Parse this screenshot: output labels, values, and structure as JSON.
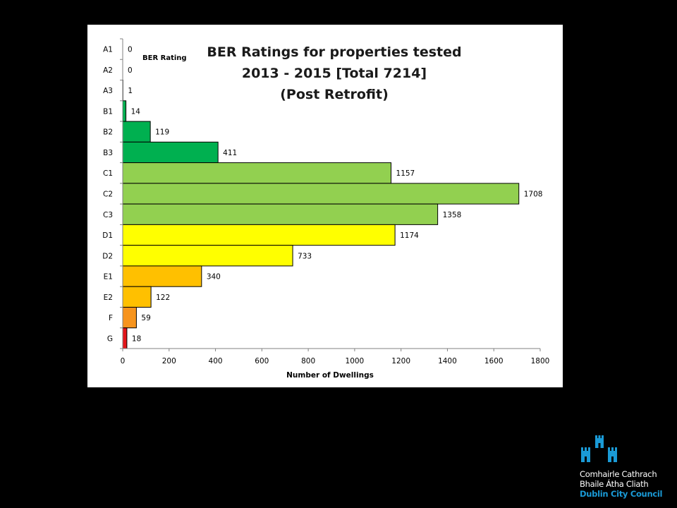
{
  "chart_data": {
    "type": "bar",
    "orientation": "horizontal",
    "title_lines": [
      "BER Ratings for properties tested",
      "2013 - 2015 [Total 7214]",
      "(Post Retrofit)"
    ],
    "xlabel": "Number of Dwellings",
    "ylabel": "BER Rating",
    "xlim": [
      0,
      1800
    ],
    "xticks": [
      "0",
      "200",
      "400",
      "600",
      "800",
      "1000",
      "1200",
      "1400",
      "1600",
      "1800"
    ],
    "grid": false,
    "legend": "none",
    "categories": [
      "A1",
      "A2",
      "A3",
      "B1",
      "B2",
      "B3",
      "C1",
      "C2",
      "C3",
      "D1",
      "D2",
      "E1",
      "E2",
      "F",
      "G"
    ],
    "values": [
      0,
      0,
      1,
      14,
      119,
      411,
      1157,
      1708,
      1358,
      1174,
      733,
      340,
      122,
      59,
      18
    ],
    "colors": [
      "#00a651",
      "#00a651",
      "#00a651",
      "#00b050",
      "#00b050",
      "#00b050",
      "#92d050",
      "#92d050",
      "#92d050",
      "#ffff00",
      "#ffff00",
      "#ffc000",
      "#ffc000",
      "#f7941d",
      "#e3151a"
    ]
  },
  "logo": {
    "line1": "Comhairle Cathrach",
    "line2": "Bhaile Átha Cliath",
    "line3": "Dublin City Council",
    "accent_color": "#1a9ad6"
  }
}
